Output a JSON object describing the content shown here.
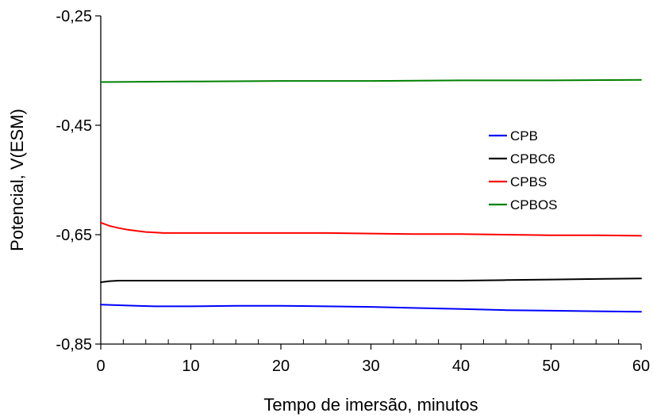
{
  "chart_data": {
    "type": "line",
    "title": "",
    "xlabel": "Tempo de imersão, minutos",
    "ylabel": "Potencial,  V(ESM)",
    "xlim": [
      0,
      60
    ],
    "ylim": [
      -0.85,
      -0.25
    ],
    "x_ticks": [
      0,
      10,
      20,
      30,
      40,
      50,
      60
    ],
    "x_tick_labels": [
      "0",
      "10",
      "20",
      "30",
      "40",
      "50",
      "60"
    ],
    "y_ticks": [
      -0.25,
      -0.45,
      -0.65,
      -0.85
    ],
    "y_tick_labels": [
      "-0,25",
      "-0,45",
      "-0,65",
      "-0,85"
    ],
    "x_minor_step": 2.5,
    "grid": false,
    "legend_position": "right",
    "series": [
      {
        "name": "CPB",
        "color": "#0000ff",
        "x": [
          0,
          2,
          4,
          6,
          8,
          10,
          15,
          20,
          25,
          30,
          35,
          40,
          45,
          50,
          55,
          60
        ],
        "y": [
          -0.778,
          -0.779,
          -0.78,
          -0.781,
          -0.781,
          -0.781,
          -0.78,
          -0.78,
          -0.781,
          -0.782,
          -0.784,
          -0.786,
          -0.788,
          -0.789,
          -0.79,
          -0.791
        ]
      },
      {
        "name": "CPBC6",
        "color": "#000000",
        "x": [
          0,
          1,
          2,
          4,
          6,
          10,
          15,
          20,
          25,
          30,
          35,
          40,
          45,
          50,
          55,
          60
        ],
        "y": [
          -0.737,
          -0.735,
          -0.734,
          -0.734,
          -0.734,
          -0.734,
          -0.734,
          -0.734,
          -0.734,
          -0.734,
          -0.734,
          -0.734,
          -0.733,
          -0.732,
          -0.731,
          -0.73
        ]
      },
      {
        "name": "CPBS",
        "color": "#ff0000",
        "x": [
          0,
          0.5,
          1,
          1.5,
          2,
          3,
          4,
          5,
          6,
          7,
          8,
          10,
          15,
          20,
          25,
          30,
          35,
          40,
          45,
          50,
          55,
          60
        ],
        "y": [
          -0.628,
          -0.631,
          -0.634,
          -0.636,
          -0.638,
          -0.641,
          -0.643,
          -0.645,
          -0.646,
          -0.647,
          -0.647,
          -0.647,
          -0.647,
          -0.647,
          -0.647,
          -0.648,
          -0.649,
          -0.649,
          -0.65,
          -0.651,
          -0.651,
          -0.652
        ]
      },
      {
        "name": "CPBOS",
        "color": "#008000",
        "x": [
          0,
          10,
          20,
          30,
          40,
          50,
          60
        ],
        "y": [
          -0.371,
          -0.37,
          -0.369,
          -0.369,
          -0.368,
          -0.368,
          -0.367
        ]
      }
    ]
  }
}
